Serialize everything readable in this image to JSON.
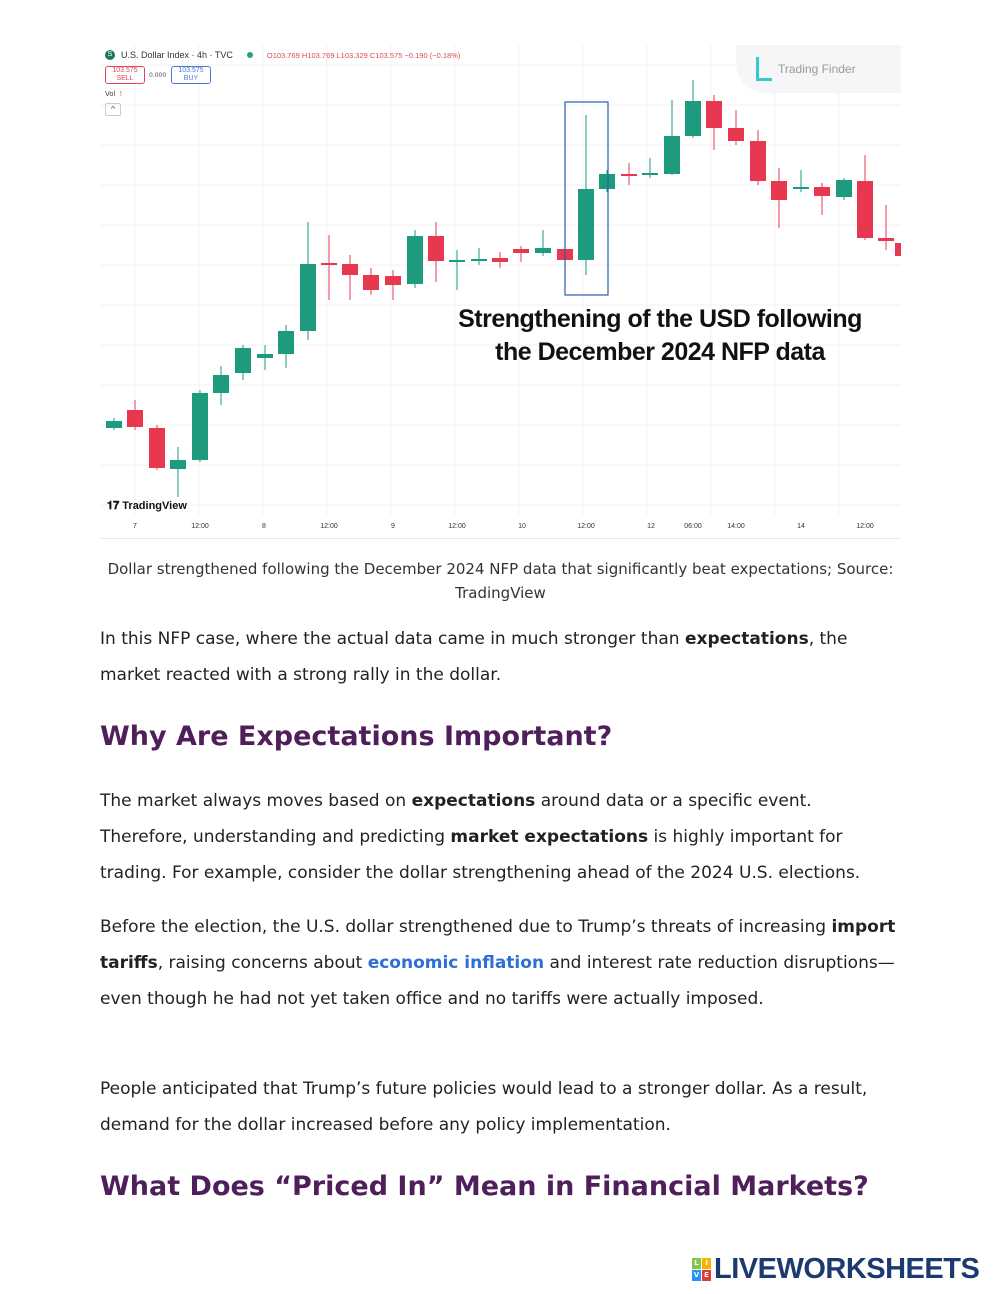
{
  "chart": {
    "symbol_icon": "S",
    "title": "U.S. Dollar Index · 4h · TVC",
    "ohlc": "O103.769 H103.769 L103.329 C103.575 −0.190 (−0.18%)",
    "sell_price": "103.575",
    "sell_label": "SELL",
    "spread": "0.000",
    "buy_price": "103.575",
    "buy_label": "BUY",
    "vol_label": "Vol",
    "vol_alert": "!",
    "collapse": "^",
    "watermark": "Trading Finder",
    "tv_logo": "TradingView",
    "annotation_line1": "Strengthening of the USD following",
    "annotation_line2": "the December 2024 NFP data",
    "x_labels": [
      "7",
      "12:00",
      "8",
      "12:00",
      "9",
      "12:00",
      "10",
      "12:00",
      "12",
      "06:00",
      "14:00",
      "14",
      "12:00"
    ],
    "colors": {
      "up": "#1e9a7e",
      "down": "#e8384f",
      "highlight": "#2a5db0"
    }
  },
  "caption": "Dollar strengthened following the December 2024 NFP data that significantly beat expectations; Source: TradingView",
  "p1": {
    "a": "In this NFP case, where the actual data came in much stronger than ",
    "b": "expectations",
    "c": ", the market reacted with a strong rally in the dollar."
  },
  "h1": "Why Are Expectations Important?",
  "p2": {
    "a": "The market always moves based on ",
    "b": "expectations",
    "c": " around data or a specific event. Therefore, understanding and predicting ",
    "d": "market expectations",
    "e": " is highly important for trading. For example, consider the dollar strengthening ahead of the 2024 U.S. elections."
  },
  "p3": {
    "a": "Before the election, the U.S. dollar strengthened due to Trump’s threats of increasing ",
    "b": "import tariffs",
    "c": ", raising concerns about ",
    "link": "economic inflation",
    "d": " and interest rate reduction disruptions—even though he had not yet taken office and no tariffs were actually imposed."
  },
  "p4": "People anticipated that Trump’s future policies would lead to a stronger dollar. As a result, demand for the dollar increased before any policy implementation.",
  "h2": "What Does “Priced In” Mean in Financial Markets?",
  "footer": {
    "logo_letters": [
      "L",
      "I",
      "V",
      "E"
    ],
    "logo_text": "LIVEWORKSHEETS"
  }
}
